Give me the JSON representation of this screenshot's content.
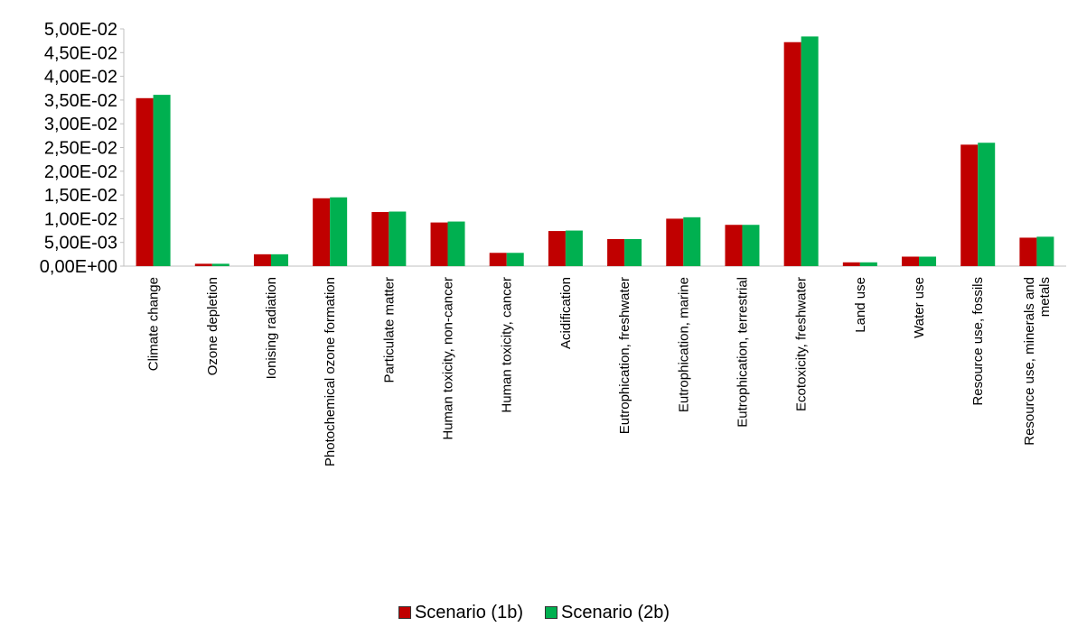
{
  "chart_data": {
    "type": "bar",
    "title": "",
    "xlabel": "",
    "ylabel": "",
    "ylim": [
      0,
      0.05
    ],
    "y_ticks": [
      {
        "value": 0.0,
        "label": "0,00E+00"
      },
      {
        "value": 0.005,
        "label": "5,00E-03"
      },
      {
        "value": 0.01,
        "label": "1,00E-02"
      },
      {
        "value": 0.015,
        "label": "1,50E-02"
      },
      {
        "value": 0.02,
        "label": "2,00E-02"
      },
      {
        "value": 0.025,
        "label": "2,50E-02"
      },
      {
        "value": 0.03,
        "label": "3,00E-02"
      },
      {
        "value": 0.035,
        "label": "3,50E-02"
      },
      {
        "value": 0.04,
        "label": "4,00E-02"
      },
      {
        "value": 0.045,
        "label": "4,50E-02"
      },
      {
        "value": 0.05,
        "label": "5,00E-02"
      }
    ],
    "grid": false,
    "legend_position": "bottom",
    "categories": [
      [
        "Climate change"
      ],
      [
        "Ozone depletion"
      ],
      [
        "Ionising radiation"
      ],
      [
        "Photochemical ozone formation"
      ],
      [
        "Particulate matter"
      ],
      [
        "Human toxicity, non-cancer"
      ],
      [
        "Human toxicity, cancer"
      ],
      [
        "Acidification"
      ],
      [
        "Eutrophication, freshwater"
      ],
      [
        "Eutrophication, marine"
      ],
      [
        "Eutrophication, terrestrial"
      ],
      [
        "Ecotoxicity, freshwater"
      ],
      [
        "Land use"
      ],
      [
        "Water use"
      ],
      [
        "Resource use, fossils"
      ],
      [
        "Resource use, minerals and",
        "metals"
      ]
    ],
    "series": [
      {
        "name": "Scenario (1b)",
        "color": "#c00000",
        "values": [
          0.0354,
          0.0005,
          0.0025,
          0.0143,
          0.0114,
          0.0092,
          0.0028,
          0.0074,
          0.0057,
          0.01,
          0.0087,
          0.0472,
          0.0008,
          0.002,
          0.0256,
          0.006
        ]
      },
      {
        "name": "Scenario (2b)",
        "color": "#00b050",
        "values": [
          0.0361,
          0.0005,
          0.0025,
          0.0145,
          0.0115,
          0.0094,
          0.0028,
          0.0075,
          0.0057,
          0.0103,
          0.0087,
          0.0484,
          0.0008,
          0.002,
          0.026,
          0.0062
        ]
      }
    ]
  }
}
